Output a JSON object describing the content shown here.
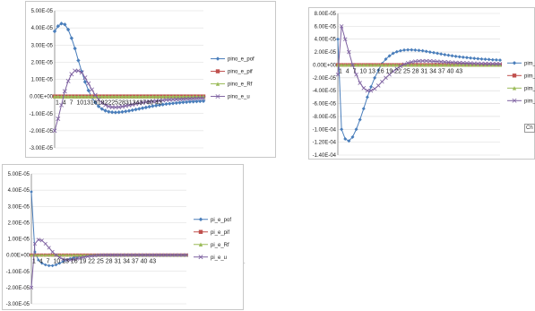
{
  "colors": {
    "pof": "#4a7ebb",
    "pif": "#c0504d",
    "Rf": "#9bbb59",
    "u": "#7d60a0",
    "grid": "#d9d9d9",
    "axis": "#808080"
  },
  "chart_data": [
    {
      "type": "line",
      "ylim": [
        -3e-05,
        5e-05
      ],
      "yticks": [
        "5.00E-05",
        "4.00E-05",
        "3.00E-05",
        "2.00E-05",
        "1.00E-05",
        "0.00E+00",
        "-1.00E-05",
        "-2.00E-05",
        "-3.00E-05"
      ],
      "x_tick_text": "1  4  7  1013161922252831343740 43",
      "legend_position": "right",
      "grid": true,
      "n_points": 45,
      "series": [
        {
          "name": "pino_e_pof",
          "color_key": "pof",
          "values": [
            3.8e-05,
            4.1e-05,
            4.25e-05,
            4.2e-05,
            3.9e-05,
            3.4e-05,
            2.8e-05,
            2.1e-05,
            1.45e-05,
            8.5e-06,
            3.5e-06,
            -5e-07,
            -3.5e-06,
            -5.8e-06,
            -7.3e-06,
            -8.3e-06,
            -8.9e-06,
            -9.2e-06,
            -9.3e-06,
            -9.2e-06,
            -9e-06,
            -8.7e-06,
            -8.4e-06,
            -8e-06,
            -7.6e-06,
            -7.2e-06,
            -6.8e-06,
            -6.4e-06,
            -6e-06,
            -5.6e-06,
            -5.3e-06,
            -5e-06,
            -4.7e-06,
            -4.4e-06,
            -4.2e-06,
            -4e-06,
            -3.8e-06,
            -3.6e-06,
            -3.4e-06,
            -3.3e-06,
            -3.1e-06,
            -3e-06,
            -2.9e-06,
            -2.8e-06,
            -2.7e-06
          ]
        },
        {
          "name": "pino_e_pif",
          "color_key": "pif",
          "constant": 0
        },
        {
          "name": "pino_e_Rf",
          "color_key": "Rf",
          "constant": 0
        },
        {
          "name": "pino_e_u",
          "color_key": "u",
          "values": [
            -2e-05,
            -1.3e-05,
            -5e-06,
            3e-06,
            9e-06,
            1.3e-05,
            1.5e-05,
            1.5e-05,
            1.4e-05,
            1.1e-05,
            7.5e-06,
            4e-06,
            8e-07,
            -1.8e-06,
            -3.7e-06,
            -5e-06,
            -5.8e-06,
            -6.2e-06,
            -6.3e-06,
            -6.2e-06,
            -5.9e-06,
            -5.5e-06,
            -5.1e-06,
            -4.7e-06,
            -4.3e-06,
            -3.9e-06,
            -3.6e-06,
            -3.3e-06,
            -3e-06,
            -2.8e-06,
            -2.6e-06,
            -2.4e-06,
            -2.2e-06,
            -2e-06,
            -1.9e-06,
            -1.8e-06,
            -1.7e-06,
            -1.6e-06,
            -1.5e-06,
            -1.4e-06,
            -1.3e-06,
            -1.2e-06,
            -1.1e-06,
            -1e-06,
            -1e-06
          ]
        }
      ]
    },
    {
      "type": "line",
      "ylim": [
        -0.00014,
        8e-05
      ],
      "yticks": [
        "8.00E-05",
        "6.00E-05",
        "4.00E-05",
        "2.00E-05",
        "0.00E+00",
        "-2.00E-05",
        "-4.00E-05",
        "-6.00E-05",
        "-8.00E-05",
        "-1.00E-04",
        "-1.20E-04",
        "-1.40E-04"
      ],
      "x_tick_text": "1  4  7  10 13 16 19 22 25 28 31 34 37 40 43",
      "legend_position": "right",
      "grid": true,
      "n_points": 45,
      "series": [
        {
          "name": "pim_e_pof",
          "color_key": "pof",
          "values": [
            4e-05,
            -0.0001,
            -0.000115,
            -0.000118,
            -0.000112,
            -0.0001,
            -8.5e-05,
            -6.8e-05,
            -5e-05,
            -3.4e-05,
            -2e-05,
            -8e-06,
            2e-06,
            9e-06,
            1.4e-05,
            1.8e-05,
            2.05e-05,
            2.2e-05,
            2.3e-05,
            2.35e-05,
            2.35e-05,
            2.3e-05,
            2.25e-05,
            2.2e-05,
            2.1e-05,
            2e-05,
            1.9e-05,
            1.8e-05,
            1.7e-05,
            1.6e-05,
            1.5e-05,
            1.42e-05,
            1.34e-05,
            1.26e-05,
            1.2e-05,
            1.14e-05,
            1.08e-05,
            1.02e-05,
            9.7e-06,
            9.2e-06,
            8.8e-06,
            8.4e-06,
            8e-06,
            7.7e-06,
            7.4e-06
          ]
        },
        {
          "name": "pim_e_pif",
          "color_key": "pif",
          "constant": 0
        },
        {
          "name": "pim_e_Rf",
          "color_key": "Rf",
          "constant": 0
        },
        {
          "name": "pim_e_u",
          "color_key": "u",
          "values": [
            -1.5e-05,
            6e-05,
            4e-05,
            2e-05,
            0,
            -1.5e-05,
            -2.8e-05,
            -3.6e-05,
            -4e-05,
            -4e-05,
            -3.7e-05,
            -3.2e-05,
            -2.6e-05,
            -2e-05,
            -1.5e-05,
            -1e-05,
            -6e-06,
            -2e-06,
            1e-06,
            3e-06,
            4.5e-06,
            5.5e-06,
            6e-06,
            6.2e-06,
            6.2e-06,
            6e-06,
            5.7e-06,
            5.3e-06,
            5e-06,
            4.6e-06,
            4.2e-06,
            3.9e-06,
            3.6e-06,
            3.3e-06,
            3e-06,
            2.8e-06,
            2.6e-06,
            2.4e-06,
            2.2e-06,
            2e-06,
            1.9e-06,
            1.8e-06,
            1.7e-06,
            1.6e-06,
            1.5e-06
          ]
        }
      ]
    },
    {
      "type": "line",
      "ylim": [
        -3e-05,
        5e-05
      ],
      "yticks": [
        "5.00E-05",
        "4.00E-05",
        "3.00E-05",
        "2.00E-05",
        "1.00E-05",
        "0.00E+00",
        "-1.00E-05",
        "-2.00E-05",
        "-3.00E-05"
      ],
      "x_tick_text": "1  4  7  10 13 16 19 22 25 28 31 34 37 40 43",
      "legend_position": "right",
      "grid": true,
      "n_points": 45,
      "series": [
        {
          "name": "pi_e_pof",
          "color_key": "pof",
          "values": [
            3.9e-05,
            2e-06,
            -3e-06,
            -5e-06,
            -6e-06,
            -6.5e-06,
            -6.5e-06,
            -6e-06,
            -5e-06,
            -4e-06,
            -3e-06,
            -2.2e-06,
            -1.5e-06,
            -1e-06,
            -7e-07,
            -5e-07,
            -3e-07,
            -2e-07,
            -1e-07,
            0,
            0,
            0,
            0,
            0,
            0,
            0,
            0,
            0,
            0,
            0,
            0,
            0,
            0,
            0,
            0,
            0,
            0,
            0,
            0,
            0,
            0,
            0,
            0,
            0,
            0
          ]
        },
        {
          "name": "pi_e_pif",
          "color_key": "pif",
          "constant": 0
        },
        {
          "name": "pi_e_Rf",
          "color_key": "Rf",
          "constant": 0
        },
        {
          "name": "pi_e_u",
          "color_key": "u",
          "values": [
            -2e-05,
            7e-06,
            9.5e-06,
            9e-06,
            7e-06,
            4.5e-06,
            2e-06,
            0,
            -1.5e-06,
            -2.5e-06,
            -3e-06,
            -3e-06,
            -2.7e-06,
            -2.2e-06,
            -1.7e-06,
            -1.2e-06,
            -8e-07,
            -5e-07,
            -3e-07,
            -1e-07,
            0,
            0,
            0,
            0,
            0,
            0,
            0,
            0,
            0,
            0,
            0,
            0,
            0,
            0,
            0,
            0,
            0,
            0,
            0,
            0,
            0,
            0,
            0,
            0,
            0
          ]
        }
      ]
    }
  ],
  "popup_text": "Ch"
}
